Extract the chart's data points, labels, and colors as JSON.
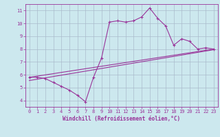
{
  "background_color": "#cce8ee",
  "grid_color": "#aabbcc",
  "line_color": "#993399",
  "xlim": [
    -0.5,
    23.5
  ],
  "ylim": [
    3.5,
    11.5
  ],
  "xticks": [
    0,
    1,
    2,
    3,
    4,
    5,
    6,
    7,
    8,
    9,
    10,
    11,
    12,
    13,
    14,
    15,
    16,
    17,
    18,
    19,
    20,
    21,
    22,
    23
  ],
  "yticks": [
    4,
    5,
    6,
    7,
    8,
    9,
    10,
    11
  ],
  "line1_x": [
    0,
    1,
    2,
    3,
    4,
    5,
    6,
    7,
    8,
    9,
    10,
    11,
    12,
    13,
    14,
    15,
    16,
    17,
    18,
    19,
    20,
    21,
    22,
    23
  ],
  "line1_y": [
    5.8,
    5.8,
    5.7,
    5.4,
    5.1,
    4.8,
    4.4,
    3.9,
    5.8,
    7.3,
    10.1,
    10.2,
    10.1,
    10.2,
    10.5,
    11.2,
    10.4,
    9.8,
    8.3,
    8.8,
    8.6,
    8.0,
    8.1,
    8.0
  ],
  "line2_x": [
    0,
    23
  ],
  "line2_y": [
    5.8,
    8.0
  ],
  "line3_x": [
    0,
    23
  ],
  "line3_y": [
    5.55,
    7.95
  ],
  "xlabel": "Windchill (Refroidissement éolien,°C)",
  "xlabel_fontsize": 5.5,
  "tick_fontsize": 5.0,
  "marker_size": 3,
  "line_width": 0.8
}
